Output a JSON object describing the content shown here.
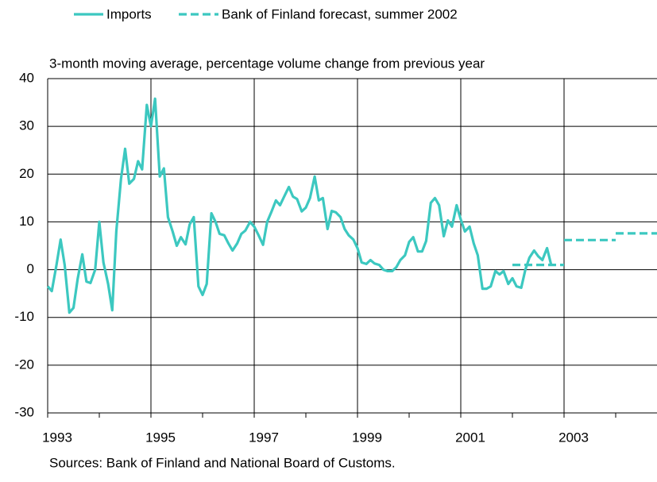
{
  "chart_data": {
    "type": "line",
    "subtitle": "3-month moving average, percentage volume change from previous year",
    "source": "Sources: Bank of Finland and National Board of Customs.",
    "xlim": [
      1993,
      2004.8
    ],
    "xticks": [
      1993,
      1995,
      1997,
      1999,
      2001,
      2003
    ],
    "xminor_ticks": [
      1994,
      1996,
      1998,
      2000,
      2002,
      2004
    ],
    "ylim": [
      -30,
      40
    ],
    "yticks": [
      -30,
      -20,
      -10,
      0,
      10,
      20,
      30,
      40
    ],
    "grid": true,
    "legend": "top",
    "series": [
      {
        "name": "Imports",
        "color": "#3cc8c0",
        "style": "solid",
        "x": [
          1993.0,
          1993.08,
          1993.17,
          1993.25,
          1993.33,
          1993.42,
          1993.5,
          1993.58,
          1993.67,
          1993.75,
          1993.83,
          1993.92,
          1994.0,
          1994.08,
          1994.17,
          1994.25,
          1994.33,
          1994.42,
          1994.5,
          1994.58,
          1994.67,
          1994.75,
          1994.83,
          1994.92,
          1995.0,
          1995.08,
          1995.17,
          1995.25,
          1995.33,
          1995.42,
          1995.5,
          1995.58,
          1995.67,
          1995.75,
          1995.83,
          1995.92,
          1996.0,
          1996.08,
          1996.17,
          1996.25,
          1996.33,
          1996.42,
          1996.5,
          1996.58,
          1996.67,
          1996.75,
          1996.83,
          1996.92,
          1997.0,
          1997.08,
          1997.17,
          1997.25,
          1997.33,
          1997.42,
          1997.5,
          1997.58,
          1997.67,
          1997.75,
          1997.83,
          1997.92,
          1998.0,
          1998.08,
          1998.17,
          1998.25,
          1998.33,
          1998.42,
          1998.5,
          1998.58,
          1998.67,
          1998.75,
          1998.83,
          1998.92,
          1999.0,
          1999.08,
          1999.17,
          1999.25,
          1999.33,
          1999.42,
          1999.5,
          1999.58,
          1999.67,
          1999.75,
          1999.83,
          1999.92,
          2000.0,
          2000.08,
          2000.17,
          2000.25,
          2000.33,
          2000.42,
          2000.5,
          2000.58,
          2000.67,
          2000.75,
          2000.83,
          2000.92,
          2001.0,
          2001.08,
          2001.17,
          2001.25,
          2001.33,
          2001.42,
          2001.5,
          2001.58,
          2001.67,
          2001.75,
          2001.83,
          2001.92,
          2002.0,
          2002.08,
          2002.17,
          2002.25,
          2002.33,
          2002.42,
          2002.5,
          2002.58,
          2002.67,
          2002.75
        ],
        "values": [
          -3.5,
          -4.5,
          1,
          6.3,
          1,
          -9,
          -8,
          -2,
          3.2,
          -2.5,
          -2.8,
          0,
          10,
          1.5,
          -3,
          -8.5,
          8,
          19,
          25.3,
          18,
          19,
          22.7,
          21,
          34.5,
          30,
          35.8,
          19.5,
          21.2,
          11,
          8,
          5,
          6.8,
          5.3,
          9.5,
          11,
          -3.5,
          -5.3,
          -3,
          11.8,
          10,
          7.5,
          7.2,
          5.5,
          4,
          5.5,
          7.5,
          8.2,
          10,
          9,
          7.3,
          5.2,
          10,
          12,
          14.5,
          13.5,
          15.3,
          17.3,
          15.3,
          14.8,
          12.2,
          13,
          15,
          19.5,
          14.5,
          15,
          8.5,
          12.3,
          12,
          11,
          8.5,
          7.2,
          6.3,
          4.5,
          1.5,
          1.2,
          2,
          1.3,
          1,
          0,
          -0.3,
          -0.3,
          0.5,
          2,
          3,
          5.8,
          6.8,
          3.8,
          3.8,
          6,
          14,
          15,
          13.5,
          7,
          10.3,
          9,
          13.5,
          10.5,
          8,
          9,
          5.5,
          3,
          -4,
          -4,
          -3.5,
          -0.3,
          -1,
          -0.3,
          -3,
          -1.8,
          -3.5,
          -3.8,
          0,
          2.5,
          4,
          2.8,
          2,
          4.5,
          1
        ]
      },
      {
        "name": "Bank of Finland forecast, summer 2002",
        "color": "#3cc8c0",
        "style": "dashed",
        "x": [
          2002,
          2003,
          2003,
          2003,
          2004,
          2004,
          2004,
          2004.8
        ],
        "values": [
          1,
          1,
          null,
          6.2,
          6.2,
          null,
          7.6,
          7.6
        ]
      }
    ]
  }
}
